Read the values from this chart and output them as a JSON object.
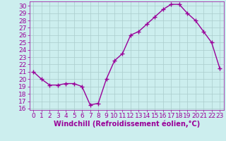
{
  "x": [
    0,
    1,
    2,
    3,
    4,
    5,
    6,
    7,
    8,
    9,
    10,
    11,
    12,
    13,
    14,
    15,
    16,
    17,
    18,
    19,
    20,
    21,
    22,
    23
  ],
  "y": [
    21.0,
    20.0,
    19.2,
    19.2,
    19.4,
    19.4,
    19.0,
    16.5,
    16.7,
    20.0,
    22.5,
    23.5,
    26.0,
    26.5,
    27.5,
    28.5,
    29.5,
    30.2,
    30.2,
    29.0,
    28.0,
    26.5,
    25.0,
    21.5
  ],
  "line_color": "#990099",
  "marker": "+",
  "marker_size": 4,
  "marker_lw": 1.0,
  "bg_color": "#cceeee",
  "xlabel": "Windchill (Refroidissement éolien,°C)",
  "xlim": [
    -0.5,
    23.5
  ],
  "ylim": [
    15.8,
    30.6
  ],
  "yticks": [
    16,
    17,
    18,
    19,
    20,
    21,
    22,
    23,
    24,
    25,
    26,
    27,
    28,
    29,
    30
  ],
  "xticks": [
    0,
    1,
    2,
    3,
    4,
    5,
    6,
    7,
    8,
    9,
    10,
    11,
    12,
    13,
    14,
    15,
    16,
    17,
    18,
    19,
    20,
    21,
    22,
    23
  ],
  "grid_color": "#aacccc",
  "xlabel_color": "#990099",
  "tick_color": "#990099",
  "tick_fontsize": 6.5,
  "xlabel_fontsize": 7.0,
  "linewidth": 1.0
}
